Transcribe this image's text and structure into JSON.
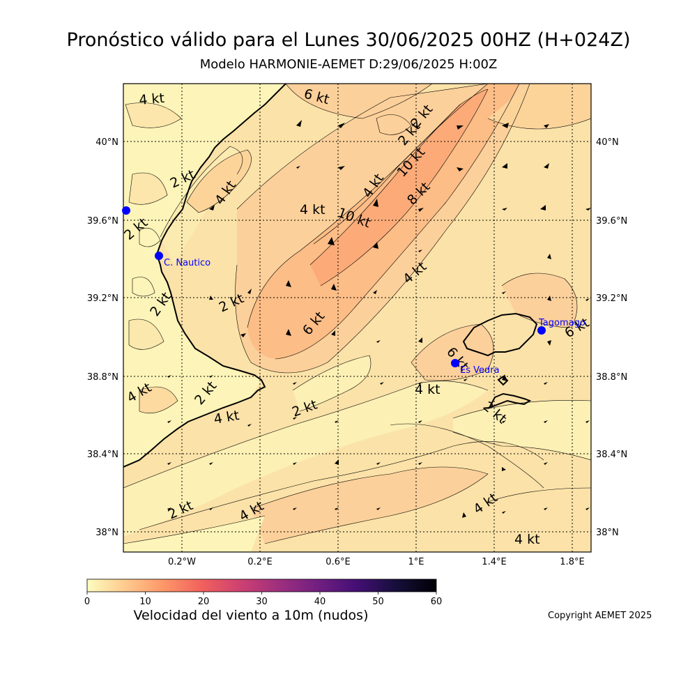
{
  "title": "Pronóstico válido para el Lunes 30/06/2025 00HZ (H+024Z)",
  "subtitle": "Modelo HARMONIE-AEMET D:29/06/2025 H:00Z",
  "axes": {
    "lon_ticks": [
      "0.2°W",
      "0.2°E",
      "0.6°E",
      "1°E",
      "1.4°E",
      "1.8°E"
    ],
    "lat_ticks": [
      "40°N",
      "39.6°N",
      "39.2°N",
      "38.8°N",
      "38.4°N",
      "38°N"
    ]
  },
  "stations": [
    {
      "name": "C. Nautico",
      "lon": -0.33,
      "lat": 39.43
    },
    {
      "name": "Tagomago",
      "lon": 1.64,
      "lat": 39.03
    },
    {
      "name": "Es Vedra",
      "lon": 1.21,
      "lat": 38.87
    },
    {
      "name": "",
      "lon": -0.48,
      "lat": 39.65
    }
  ],
  "contour_labels": [
    "4 kt",
    "6 kt",
    "2 kt",
    "4 kt",
    "2 kt",
    "10 kt",
    "4 kt",
    "8 kt",
    "4 kt",
    "10 kt",
    "2 kt",
    "4 kt",
    "2 kt",
    "2 kt",
    "2 kt",
    "6 kt",
    "6 kt",
    "4 kt",
    "4 kt",
    "2 kt",
    "4 kt",
    "2 kt",
    "2 kt",
    "4 kt",
    "2 kt",
    "4 kt",
    "4 kt",
    "6 kt"
  ],
  "colorbar": {
    "label": "Velocidad del viento a 10m (nudos)",
    "ticks": [
      "0",
      "10",
      "20",
      "30",
      "40",
      "50",
      "60"
    ],
    "min": 0,
    "max": 60
  },
  "copyright": "Copyright AEMET 2025",
  "colors": {
    "station": "#0000ff",
    "colormap": [
      "#fcfdbf",
      "#feca8d",
      "#fd9668",
      "#f1605d",
      "#cd4071",
      "#9e2f7f",
      "#721f81",
      "#440f76",
      "#180f3d",
      "#000004"
    ]
  }
}
